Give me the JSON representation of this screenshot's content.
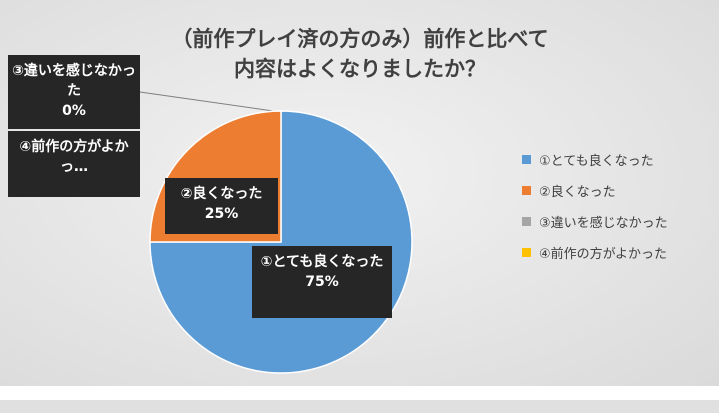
{
  "chart_data": {
    "type": "pie",
    "title": "（前作プレイ済の方のみ）前作と比べて\n内容はよくなりましたか？",
    "categories": [
      "①とても良くなった",
      "②良くなった",
      "③違いを感じなかった",
      "④前作の方がよかった"
    ],
    "values": [
      75,
      25,
      0,
      0
    ],
    "value_labels": [
      "75%",
      "25%",
      "0%",
      null
    ],
    "data_labels": [
      "①とても良くなった",
      "②良くなった",
      "③違いを感じなかった",
      "④前作の方がよかっ…"
    ],
    "colors": [
      "#5b9bd5",
      "#ed7d31",
      "#a5a5a5",
      "#ffc000"
    ],
    "legend": "right"
  }
}
